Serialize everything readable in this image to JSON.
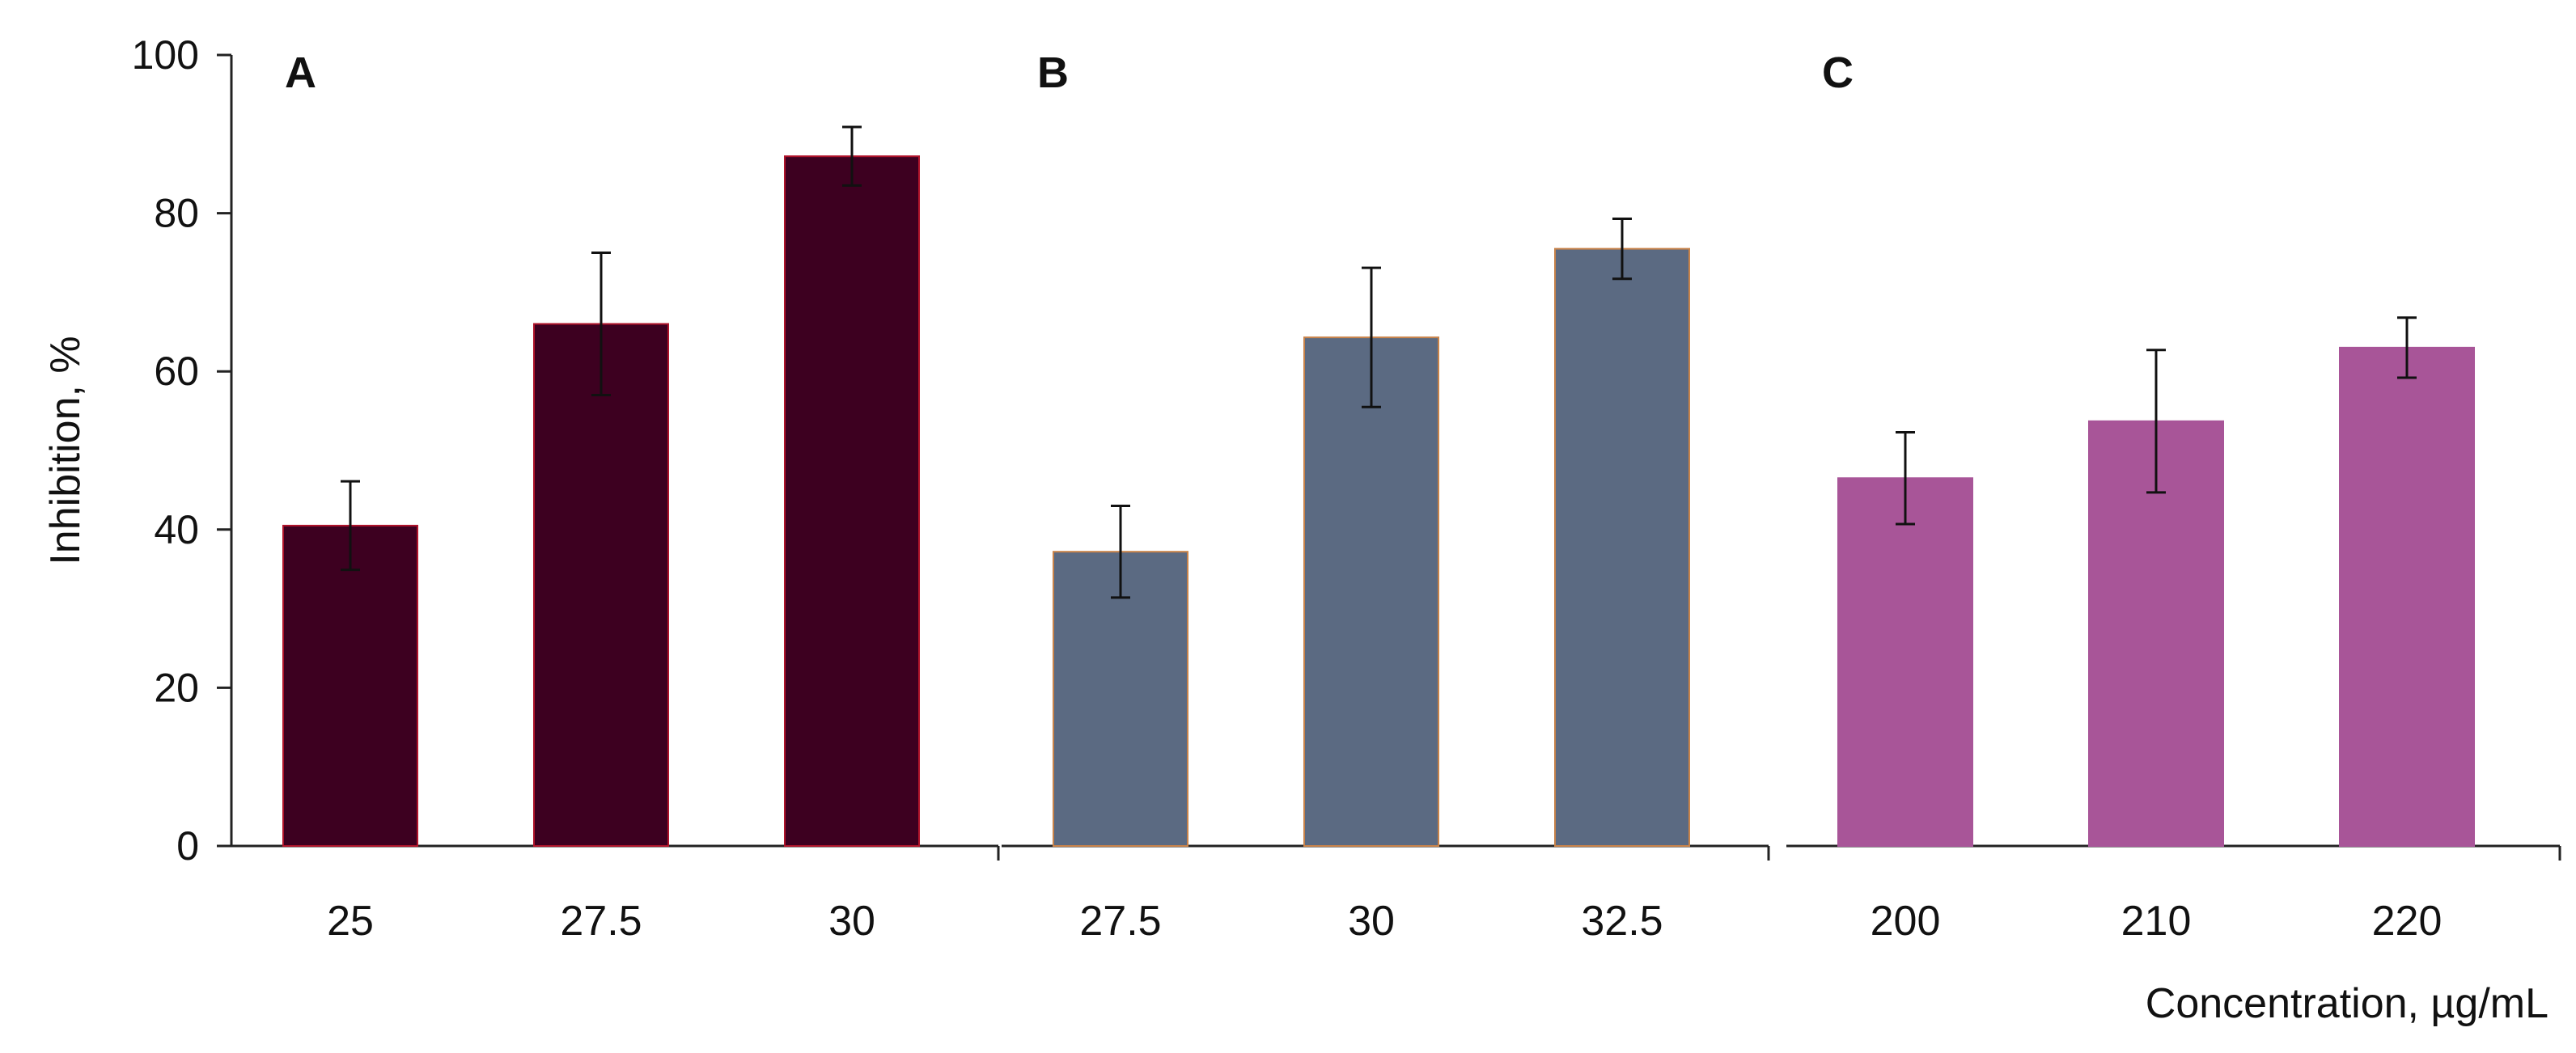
{
  "chart_data": {
    "type": "bar",
    "ylabel": "Inhibition, %",
    "xlabel": "Concentration, µg/mL",
    "ylim": [
      0,
      100
    ],
    "yticks": [
      0,
      20,
      40,
      60,
      80,
      100
    ],
    "grid": false,
    "panels": [
      {
        "label": "A",
        "categories": [
          "25",
          "27.5",
          "30"
        ],
        "values": [
          40.5,
          66,
          87.2
        ],
        "errors": [
          5.6,
          9,
          3.7
        ],
        "color": "#3d0020",
        "edge_color": "#b0142b"
      },
      {
        "label": "B",
        "categories": [
          "27.5",
          "30",
          "32.5"
        ],
        "values": [
          37.2,
          64.3,
          75.5
        ],
        "errors": [
          5.8,
          8.8,
          3.8
        ],
        "color": "#5b6a82",
        "edge_color": "#c8834a"
      },
      {
        "label": "C",
        "categories": [
          "200",
          "210",
          "220"
        ],
        "values": [
          46.5,
          53.7,
          63
        ],
        "errors": [
          5.8,
          9,
          3.8
        ],
        "color": "#a85598",
        "edge_color": "#a85598"
      }
    ]
  }
}
